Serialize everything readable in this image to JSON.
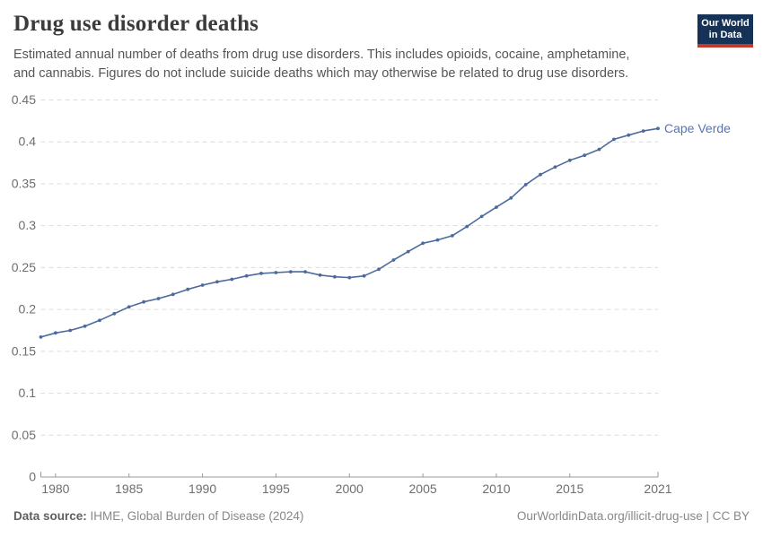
{
  "header": {
    "title": "Drug use disorder deaths",
    "subtitle_lines": [
      "Estimated annual number of deaths from drug use disorders. This includes opioids, cocaine, amphetamine,",
      "and cannabis. Figures do not include suicide deaths which may otherwise be related to drug use disorders."
    ],
    "logo": {
      "line1": "Our World",
      "line2": "in Data",
      "bg_color": "#163357",
      "stripe_color": "#C0392B"
    }
  },
  "chart_data": {
    "type": "line",
    "title": "Drug use disorder deaths",
    "xlabel": "",
    "ylabel": "",
    "ylim": [
      0,
      0.45
    ],
    "yticks": [
      0,
      0.05,
      0.1,
      0.15,
      0.2,
      0.25,
      0.3,
      0.35,
      0.4,
      0.45
    ],
    "xticks": [
      1980,
      1985,
      1990,
      1995,
      2000,
      2005,
      2010,
      2015,
      2021
    ],
    "grid": "horizontal-dashed",
    "legend_position": "end-of-line-label",
    "series": [
      {
        "name": "Cape Verde",
        "color": "#4C6A9C",
        "label_color": "#5575B5",
        "x": [
          1979,
          1980,
          1981,
          1982,
          1983,
          1984,
          1985,
          1986,
          1987,
          1988,
          1989,
          1990,
          1991,
          1992,
          1993,
          1994,
          1995,
          1996,
          1997,
          1998,
          1999,
          2000,
          2001,
          2002,
          2003,
          2004,
          2005,
          2006,
          2007,
          2008,
          2009,
          2010,
          2011,
          2012,
          2013,
          2014,
          2015,
          2016,
          2017,
          2018,
          2019,
          2020,
          2021
        ],
        "values": [
          0.167,
          0.172,
          0.175,
          0.18,
          0.187,
          0.195,
          0.203,
          0.209,
          0.213,
          0.218,
          0.224,
          0.229,
          0.233,
          0.236,
          0.24,
          0.243,
          0.244,
          0.245,
          0.245,
          0.241,
          0.239,
          0.238,
          0.24,
          0.248,
          0.259,
          0.269,
          0.279,
          0.283,
          0.288,
          0.299,
          0.311,
          0.322,
          0.333,
          0.349,
          0.361,
          0.37,
          0.378,
          0.384,
          0.391,
          0.403,
          0.408,
          0.413,
          0.416
        ]
      }
    ]
  },
  "footer": {
    "data_source_label": "Data source:",
    "data_source_value": " IHME, Global Burden of Disease (2024)",
    "credit": "OurWorldinData.org/illicit-drug-use | CC BY"
  }
}
